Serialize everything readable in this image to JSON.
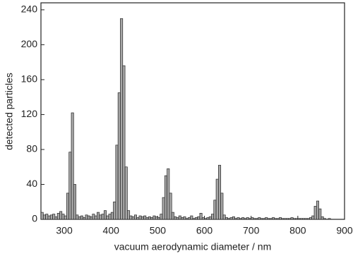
{
  "chart_data": {
    "type": "histogram",
    "x_label": "vacuum aerodynamic diameter / nm",
    "y_label": "detected particles",
    "color": "#a8a8a8",
    "bins": [
      250,
      255,
      260,
      265,
      270,
      275,
      280,
      285,
      290,
      295,
      300,
      305,
      310,
      315,
      320,
      325,
      330,
      335,
      340,
      345,
      350,
      355,
      360,
      365,
      370,
      375,
      380,
      385,
      390,
      395,
      400,
      405,
      410,
      415,
      420,
      425,
      430,
      435,
      440,
      445,
      450,
      455,
      460,
      465,
      470,
      475,
      480,
      485,
      490,
      495,
      500,
      505,
      510,
      515,
      520,
      525,
      530,
      535,
      540,
      545,
      550,
      555,
      560,
      565,
      570,
      575,
      580,
      585,
      590,
      595,
      600,
      605,
      610,
      615,
      620,
      625,
      630,
      635,
      640,
      645,
      650,
      655,
      660,
      665,
      670,
      675,
      680,
      685,
      690,
      695,
      700,
      705,
      710,
      715,
      720,
      725,
      730,
      735,
      740,
      745,
      750,
      755,
      760,
      765,
      770,
      775,
      780,
      785,
      790,
      795,
      800,
      805,
      810,
      815,
      820,
      825,
      830,
      835,
      840,
      845,
      850,
      855,
      860,
      865,
      870
    ],
    "values": [
      8,
      5,
      6,
      4,
      5,
      6,
      3,
      7,
      9,
      6,
      4,
      30,
      77,
      122,
      40,
      5,
      3,
      4,
      2,
      5,
      4,
      3,
      6,
      4,
      8,
      5,
      6,
      10,
      4,
      6,
      8,
      20,
      85,
      145,
      230,
      176,
      60,
      10,
      4,
      3,
      5,
      2,
      4,
      3,
      4,
      2,
      3,
      2,
      4,
      3,
      2,
      6,
      25,
      50,
      58,
      30,
      8,
      3,
      2,
      4,
      2,
      3,
      1,
      2,
      4,
      1,
      2,
      3,
      7,
      2,
      1,
      2,
      3,
      6,
      22,
      46,
      62,
      30,
      5,
      2,
      1,
      2,
      3,
      1,
      2,
      1,
      2,
      1,
      2,
      1,
      2,
      1,
      1,
      2,
      1,
      1,
      2,
      1,
      1,
      2,
      1,
      1,
      2,
      1,
      1,
      1,
      1,
      2,
      1,
      1,
      1,
      1,
      1,
      1,
      1,
      2,
      4,
      15,
      21,
      12,
      3,
      1,
      0,
      1
    ],
    "xlim": [
      250,
      900
    ],
    "ylim": [
      0,
      248
    ],
    "xticks": [
      300,
      400,
      500,
      600,
      700,
      800,
      900
    ],
    "yticks": [
      0,
      40,
      80,
      120,
      160,
      200,
      240
    ]
  }
}
